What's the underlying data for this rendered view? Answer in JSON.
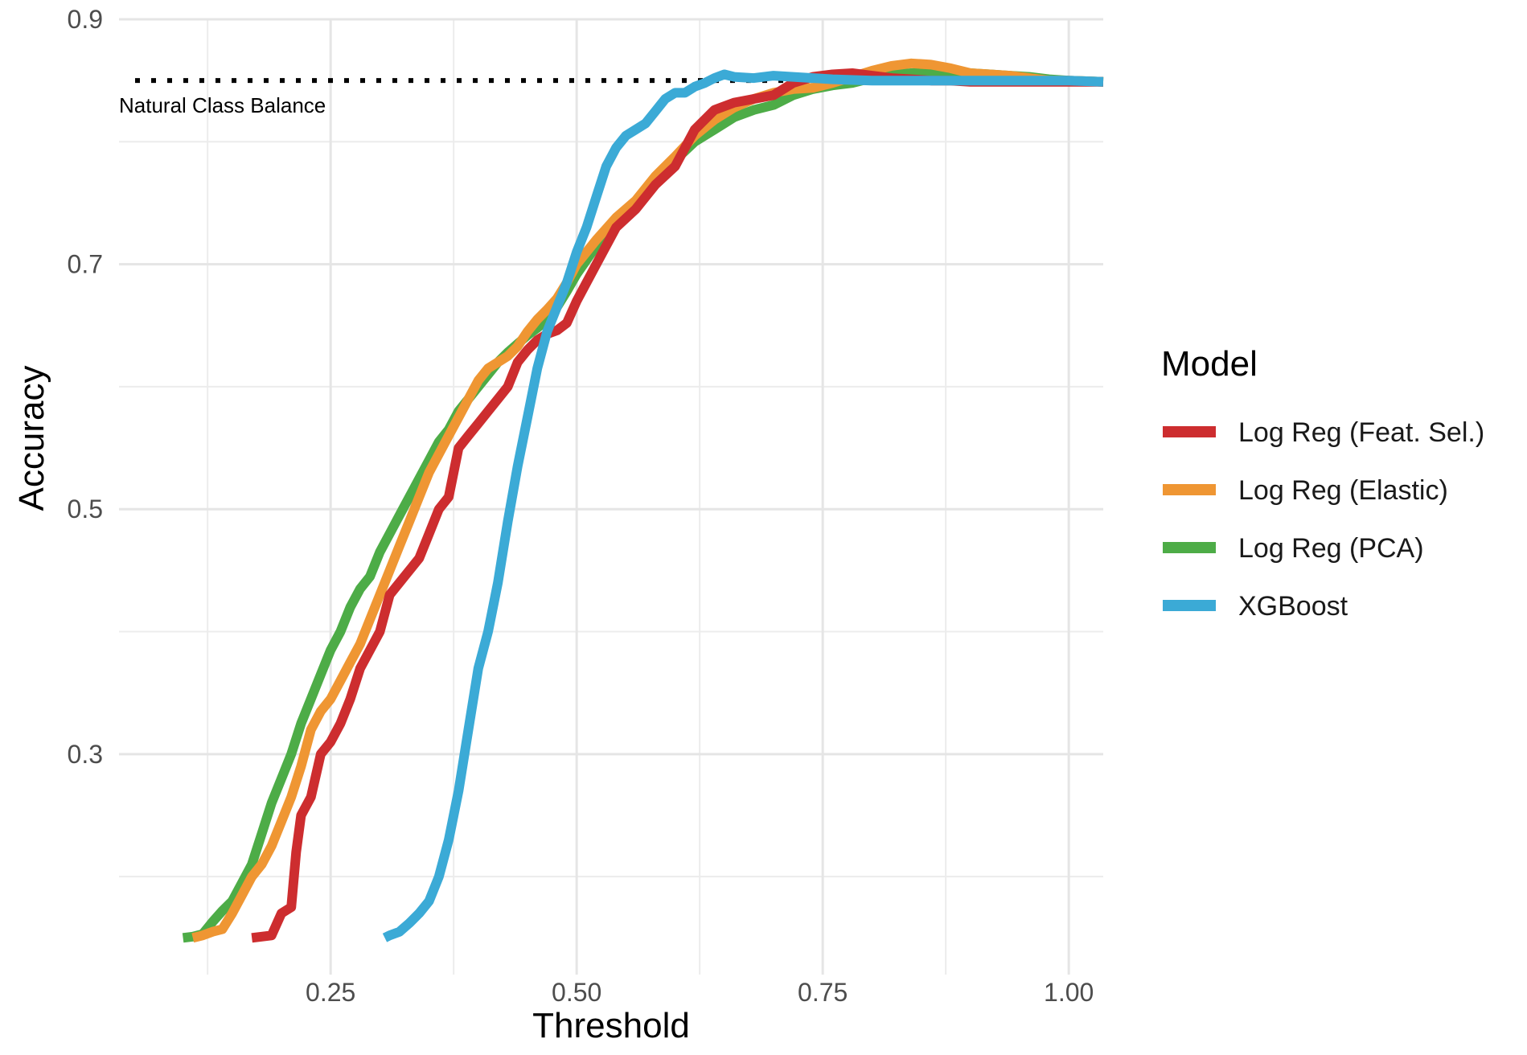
{
  "chart_data": {
    "type": "line",
    "xlabel": "Threshold",
    "ylabel": "Accuracy",
    "xlim": [
      0.035,
      1.035
    ],
    "ylim": [
      0.12,
      0.9
    ],
    "x_ticks": [
      0.25,
      0.5,
      0.75,
      1.0
    ],
    "x_tick_labels": [
      "0.25",
      "0.50",
      "0.75",
      "1.00"
    ],
    "x_minor_ticks": [
      0.125,
      0.375,
      0.625,
      0.875
    ],
    "y_ticks": [
      0.3,
      0.5,
      0.7,
      0.9
    ],
    "y_tick_labels": [
      "0.3",
      "0.5",
      "0.7",
      "0.9"
    ],
    "y_minor_ticks": [
      0.2,
      0.4,
      0.6,
      0.8
    ],
    "grid": true,
    "legend": {
      "title": "Model",
      "position": "right"
    },
    "reference_line": {
      "y": 0.85,
      "label": "Natural Class Balance",
      "style": "dotted",
      "color": "#000000"
    },
    "series": [
      {
        "name": "Log Reg (PCA)",
        "color": "#4dac47",
        "x": [
          0.1,
          0.11,
          0.12,
          0.13,
          0.14,
          0.15,
          0.16,
          0.17,
          0.18,
          0.19,
          0.2,
          0.21,
          0.22,
          0.23,
          0.24,
          0.25,
          0.26,
          0.27,
          0.28,
          0.29,
          0.3,
          0.31,
          0.32,
          0.33,
          0.34,
          0.35,
          0.36,
          0.37,
          0.38,
          0.39,
          0.4,
          0.41,
          0.42,
          0.43,
          0.44,
          0.45,
          0.46,
          0.47,
          0.48,
          0.49,
          0.5,
          0.52,
          0.54,
          0.56,
          0.58,
          0.6,
          0.62,
          0.64,
          0.66,
          0.68,
          0.7,
          0.72,
          0.74,
          0.76,
          0.78,
          0.8,
          0.82,
          0.84,
          0.86,
          0.88,
          0.9,
          0.92,
          0.94,
          0.96,
          0.98,
          1.0,
          1.035
        ],
        "values": [
          0.15,
          0.151,
          0.153,
          0.163,
          0.172,
          0.18,
          0.195,
          0.21,
          0.235,
          0.26,
          0.28,
          0.3,
          0.325,
          0.345,
          0.365,
          0.385,
          0.4,
          0.42,
          0.435,
          0.445,
          0.465,
          0.48,
          0.495,
          0.51,
          0.525,
          0.54,
          0.555,
          0.565,
          0.58,
          0.59,
          0.6,
          0.61,
          0.62,
          0.628,
          0.635,
          0.642,
          0.648,
          0.655,
          0.665,
          0.678,
          0.692,
          0.715,
          0.735,
          0.75,
          0.768,
          0.785,
          0.8,
          0.81,
          0.82,
          0.826,
          0.83,
          0.838,
          0.843,
          0.846,
          0.848,
          0.852,
          0.855,
          0.856,
          0.857,
          0.857,
          0.856,
          0.855,
          0.854,
          0.853,
          0.851,
          0.85,
          0.849
        ]
      },
      {
        "name": "Log Reg (Elastic)",
        "color": "#ef9633",
        "x": [
          0.11,
          0.12,
          0.13,
          0.14,
          0.15,
          0.16,
          0.17,
          0.18,
          0.19,
          0.2,
          0.21,
          0.22,
          0.23,
          0.24,
          0.25,
          0.26,
          0.27,
          0.28,
          0.29,
          0.3,
          0.31,
          0.32,
          0.33,
          0.34,
          0.35,
          0.36,
          0.37,
          0.38,
          0.39,
          0.4,
          0.41,
          0.42,
          0.43,
          0.44,
          0.45,
          0.46,
          0.47,
          0.48,
          0.49,
          0.5,
          0.52,
          0.54,
          0.56,
          0.58,
          0.6,
          0.62,
          0.64,
          0.66,
          0.68,
          0.7,
          0.72,
          0.74,
          0.76,
          0.78,
          0.8,
          0.82,
          0.84,
          0.86,
          0.88,
          0.9,
          0.92,
          0.94,
          0.96,
          0.98,
          1.0,
          1.035
        ],
        "values": [
          0.15,
          0.152,
          0.155,
          0.157,
          0.17,
          0.185,
          0.2,
          0.21,
          0.225,
          0.245,
          0.265,
          0.29,
          0.32,
          0.335,
          0.345,
          0.36,
          0.375,
          0.39,
          0.41,
          0.43,
          0.45,
          0.47,
          0.49,
          0.51,
          0.53,
          0.545,
          0.56,
          0.575,
          0.59,
          0.605,
          0.615,
          0.62,
          0.625,
          0.633,
          0.645,
          0.655,
          0.663,
          0.672,
          0.685,
          0.7,
          0.72,
          0.738,
          0.752,
          0.772,
          0.788,
          0.805,
          0.818,
          0.828,
          0.835,
          0.84,
          0.843,
          0.844,
          0.848,
          0.853,
          0.858,
          0.862,
          0.864,
          0.863,
          0.86,
          0.856,
          0.855,
          0.854,
          0.852,
          0.85,
          0.85,
          0.849
        ]
      },
      {
        "name": "Log Reg (Feat. Sel.)",
        "color": "#cd2d2f",
        "x": [
          0.17,
          0.18,
          0.19,
          0.2,
          0.21,
          0.215,
          0.22,
          0.23,
          0.24,
          0.25,
          0.26,
          0.27,
          0.28,
          0.29,
          0.3,
          0.31,
          0.32,
          0.33,
          0.34,
          0.35,
          0.36,
          0.37,
          0.38,
          0.39,
          0.4,
          0.41,
          0.42,
          0.43,
          0.44,
          0.45,
          0.46,
          0.47,
          0.48,
          0.49,
          0.5,
          0.52,
          0.54,
          0.56,
          0.58,
          0.6,
          0.62,
          0.64,
          0.66,
          0.68,
          0.7,
          0.72,
          0.74,
          0.76,
          0.78,
          0.8,
          0.82,
          0.84,
          0.86,
          0.88,
          0.9,
          0.92,
          0.94,
          0.96,
          0.98,
          1.0,
          1.035
        ],
        "values": [
          0.15,
          0.151,
          0.152,
          0.17,
          0.175,
          0.22,
          0.25,
          0.265,
          0.3,
          0.31,
          0.325,
          0.345,
          0.37,
          0.385,
          0.4,
          0.43,
          0.44,
          0.45,
          0.46,
          0.48,
          0.5,
          0.51,
          0.55,
          0.56,
          0.57,
          0.58,
          0.59,
          0.6,
          0.62,
          0.63,
          0.638,
          0.643,
          0.646,
          0.652,
          0.67,
          0.7,
          0.73,
          0.745,
          0.765,
          0.78,
          0.81,
          0.826,
          0.832,
          0.835,
          0.838,
          0.848,
          0.853,
          0.855,
          0.856,
          0.854,
          0.852,
          0.851,
          0.85,
          0.85,
          0.849,
          0.849,
          0.849,
          0.849,
          0.849,
          0.849,
          0.849
        ]
      },
      {
        "name": "XGBoost",
        "color": "#3baad6",
        "x": [
          0.305,
          0.31,
          0.32,
          0.33,
          0.34,
          0.35,
          0.36,
          0.37,
          0.38,
          0.39,
          0.4,
          0.41,
          0.42,
          0.43,
          0.44,
          0.45,
          0.46,
          0.47,
          0.48,
          0.49,
          0.5,
          0.51,
          0.52,
          0.53,
          0.54,
          0.55,
          0.56,
          0.57,
          0.58,
          0.59,
          0.6,
          0.61,
          0.62,
          0.63,
          0.64,
          0.65,
          0.66,
          0.68,
          0.7,
          0.72,
          0.74,
          0.76,
          0.8,
          0.85,
          0.9,
          0.95,
          1.0,
          1.035
        ],
        "values": [
          0.15,
          0.152,
          0.155,
          0.162,
          0.17,
          0.18,
          0.2,
          0.23,
          0.27,
          0.32,
          0.37,
          0.4,
          0.44,
          0.49,
          0.535,
          0.575,
          0.615,
          0.645,
          0.665,
          0.685,
          0.71,
          0.73,
          0.755,
          0.78,
          0.795,
          0.805,
          0.81,
          0.815,
          0.825,
          0.835,
          0.84,
          0.84,
          0.845,
          0.848,
          0.852,
          0.855,
          0.853,
          0.852,
          0.854,
          0.853,
          0.852,
          0.851,
          0.85,
          0.85,
          0.85,
          0.85,
          0.85,
          0.849
        ]
      }
    ],
    "legend_order": [
      "Log Reg (Feat. Sel.)",
      "Log Reg (Elastic)",
      "Log Reg (PCA)",
      "XGBoost"
    ]
  }
}
